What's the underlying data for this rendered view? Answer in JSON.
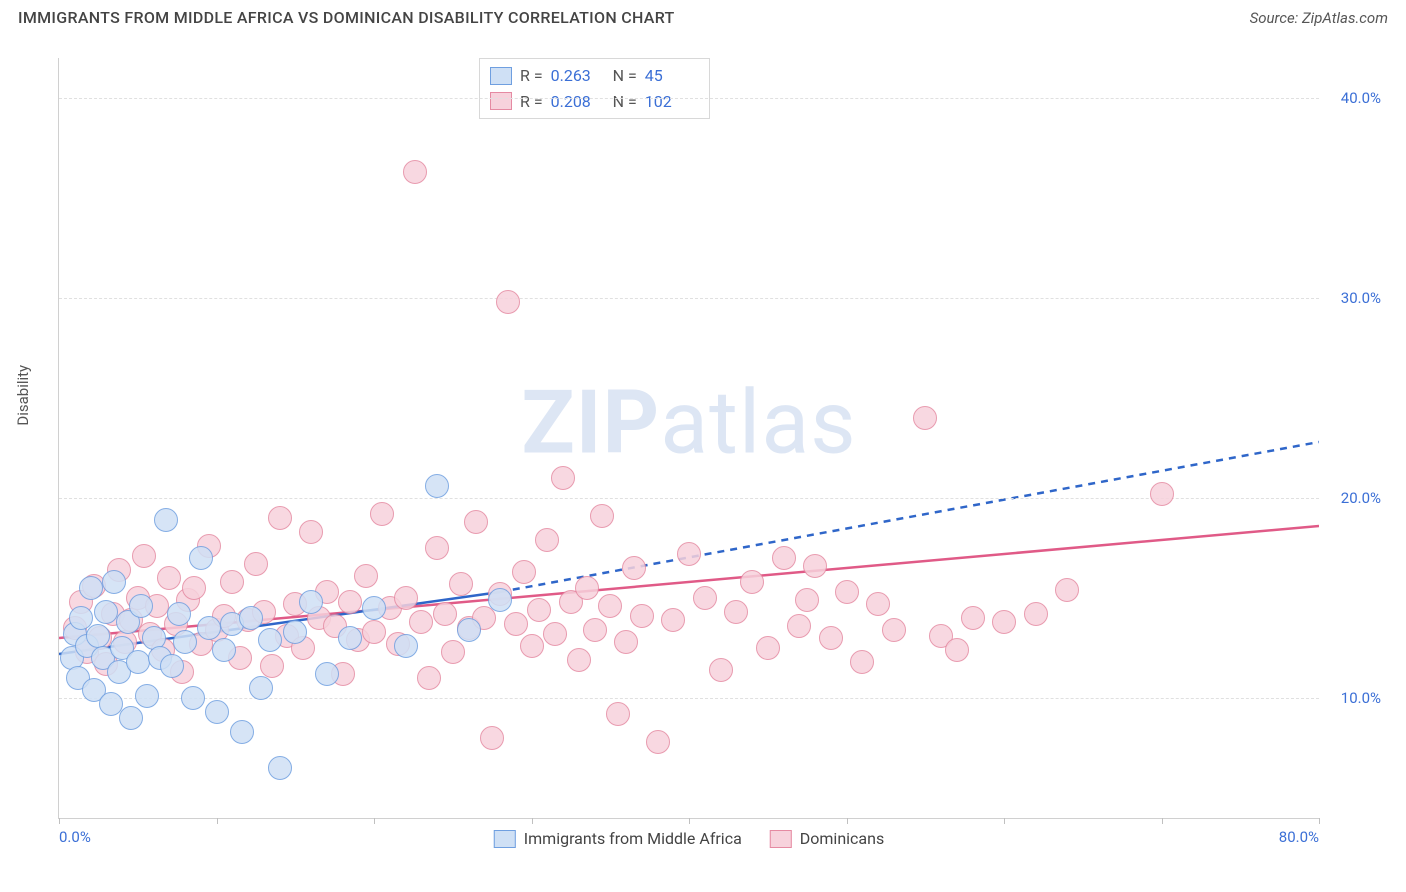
{
  "title": "IMMIGRANTS FROM MIDDLE AFRICA VS DOMINICAN DISABILITY CORRELATION CHART",
  "source": "Source: ZipAtlas.com",
  "ylabel": "Disability",
  "watermark_bold": "ZIP",
  "watermark_rest": "atlas",
  "chart": {
    "type": "scatter",
    "xlim": [
      0,
      80
    ],
    "ylim": [
      4,
      42
    ],
    "xtick_positions": [
      0,
      10,
      20,
      30,
      40,
      50,
      60,
      70,
      80
    ],
    "xtick_labels_shown": {
      "0": "0.0%",
      "80": "80.0%"
    },
    "ytick_positions": [
      10,
      20,
      30,
      40
    ],
    "ytick_labels": [
      "10.0%",
      "20.0%",
      "30.0%",
      "40.0%"
    ],
    "grid_color": "#e0e0e0",
    "axis_label_color": "#3b6fd6",
    "background_color": "#ffffff",
    "marker_radius": 11,
    "series_a": {
      "name": "Immigrants from Middle Africa",
      "fill": "#cfe0f5",
      "stroke": "#6f9fe0",
      "R": "0.263",
      "N": "45",
      "trend": {
        "x1": 0,
        "y1": 12.2,
        "x2_solid": 28,
        "y2_solid": 15.3,
        "x2_dash": 80,
        "y2_dash": 22.8,
        "color": "#2f66c9",
        "width": 2.5
      },
      "points": [
        [
          0.8,
          12.0
        ],
        [
          1.0,
          13.2
        ],
        [
          1.2,
          11.0
        ],
        [
          1.4,
          14.0
        ],
        [
          1.8,
          12.6
        ],
        [
          2.0,
          15.5
        ],
        [
          2.2,
          10.4
        ],
        [
          2.5,
          13.1
        ],
        [
          2.8,
          12.0
        ],
        [
          3.0,
          14.3
        ],
        [
          3.3,
          9.7
        ],
        [
          3.5,
          15.8
        ],
        [
          3.8,
          11.3
        ],
        [
          4.0,
          12.5
        ],
        [
          4.4,
          13.8
        ],
        [
          4.6,
          9.0
        ],
        [
          5.0,
          11.8
        ],
        [
          5.2,
          14.6
        ],
        [
          5.6,
          10.1
        ],
        [
          6.0,
          13.0
        ],
        [
          6.4,
          12.0
        ],
        [
          6.8,
          18.9
        ],
        [
          7.2,
          11.6
        ],
        [
          7.6,
          14.2
        ],
        [
          8.0,
          12.8
        ],
        [
          8.5,
          10.0
        ],
        [
          9.0,
          17.0
        ],
        [
          9.5,
          13.5
        ],
        [
          10.0,
          9.3
        ],
        [
          10.5,
          12.4
        ],
        [
          11.0,
          13.7
        ],
        [
          11.6,
          8.3
        ],
        [
          12.2,
          14.0
        ],
        [
          12.8,
          10.5
        ],
        [
          13.4,
          12.9
        ],
        [
          14.0,
          6.5
        ],
        [
          15.0,
          13.3
        ],
        [
          16.0,
          14.8
        ],
        [
          17.0,
          11.2
        ],
        [
          18.5,
          13.0
        ],
        [
          20.0,
          14.5
        ],
        [
          22.0,
          12.6
        ],
        [
          24.0,
          20.6
        ],
        [
          26.0,
          13.4
        ],
        [
          28.0,
          14.9
        ]
      ]
    },
    "series_b": {
      "name": "Dominicans",
      "fill": "#f7d2dc",
      "stroke": "#e58aa2",
      "R": "0.208",
      "N": "102",
      "trend": {
        "x1": 0,
        "y1": 13.0,
        "x2": 80,
        "y2": 18.6,
        "color": "#e05a87",
        "width": 2.5
      },
      "points": [
        [
          1.0,
          13.5
        ],
        [
          1.4,
          14.8
        ],
        [
          1.8,
          12.3
        ],
        [
          2.2,
          15.6
        ],
        [
          2.6,
          13.0
        ],
        [
          3.0,
          11.7
        ],
        [
          3.4,
          14.2
        ],
        [
          3.8,
          16.4
        ],
        [
          4.2,
          12.8
        ],
        [
          4.6,
          13.9
        ],
        [
          5.0,
          15.0
        ],
        [
          5.4,
          17.1
        ],
        [
          5.8,
          13.2
        ],
        [
          6.2,
          14.6
        ],
        [
          6.6,
          12.4
        ],
        [
          7.0,
          16.0
        ],
        [
          7.4,
          13.7
        ],
        [
          7.8,
          11.3
        ],
        [
          8.2,
          14.9
        ],
        [
          8.6,
          15.5
        ],
        [
          9.0,
          12.7
        ],
        [
          9.5,
          17.6
        ],
        [
          10.0,
          13.4
        ],
        [
          10.5,
          14.1
        ],
        [
          11.0,
          15.8
        ],
        [
          11.5,
          12.0
        ],
        [
          12.0,
          13.9
        ],
        [
          12.5,
          16.7
        ],
        [
          13.0,
          14.3
        ],
        [
          13.5,
          11.6
        ],
        [
          14.0,
          19.0
        ],
        [
          14.5,
          13.1
        ],
        [
          15.0,
          14.7
        ],
        [
          15.5,
          12.5
        ],
        [
          16.0,
          18.3
        ],
        [
          16.5,
          14.0
        ],
        [
          17.0,
          15.3
        ],
        [
          17.5,
          13.6
        ],
        [
          18.0,
          11.2
        ],
        [
          18.5,
          14.8
        ],
        [
          19.0,
          12.9
        ],
        [
          19.5,
          16.1
        ],
        [
          20.0,
          13.3
        ],
        [
          20.5,
          19.2
        ],
        [
          21.0,
          14.5
        ],
        [
          21.5,
          12.7
        ],
        [
          22.0,
          15.0
        ],
        [
          22.6,
          36.3
        ],
        [
          23.0,
          13.8
        ],
        [
          23.5,
          11.0
        ],
        [
          24.0,
          17.5
        ],
        [
          24.5,
          14.2
        ],
        [
          25.0,
          12.3
        ],
        [
          25.5,
          15.7
        ],
        [
          26.0,
          13.5
        ],
        [
          26.5,
          18.8
        ],
        [
          27.0,
          14.0
        ],
        [
          27.5,
          8.0
        ],
        [
          28.0,
          15.2
        ],
        [
          28.5,
          29.8
        ],
        [
          29.0,
          13.7
        ],
        [
          29.5,
          16.3
        ],
        [
          30.0,
          12.6
        ],
        [
          30.5,
          14.4
        ],
        [
          31.0,
          17.9
        ],
        [
          31.5,
          13.2
        ],
        [
          32.0,
          21.0
        ],
        [
          32.5,
          14.8
        ],
        [
          33.0,
          11.9
        ],
        [
          33.5,
          15.5
        ],
        [
          34.0,
          13.4
        ],
        [
          34.5,
          19.1
        ],
        [
          35.0,
          14.6
        ],
        [
          35.5,
          9.2
        ],
        [
          36.0,
          12.8
        ],
        [
          36.5,
          16.5
        ],
        [
          37.0,
          14.1
        ],
        [
          38.0,
          7.8
        ],
        [
          39.0,
          13.9
        ],
        [
          40.0,
          17.2
        ],
        [
          41.0,
          15.0
        ],
        [
          42.0,
          11.4
        ],
        [
          43.0,
          14.3
        ],
        [
          44.0,
          15.8
        ],
        [
          45.0,
          12.5
        ],
        [
          46.0,
          17.0
        ],
        [
          47.0,
          13.6
        ],
        [
          48.0,
          16.6
        ],
        [
          49.0,
          13.0
        ],
        [
          50.0,
          15.3
        ],
        [
          51.0,
          11.8
        ],
        [
          52.0,
          14.7
        ],
        [
          53.0,
          13.4
        ],
        [
          55.0,
          24.0
        ],
        [
          56.0,
          13.1
        ],
        [
          57.0,
          12.4
        ],
        [
          58.0,
          14.0
        ],
        [
          60.0,
          13.8
        ],
        [
          62.0,
          14.2
        ],
        [
          70.0,
          20.2
        ],
        [
          64.0,
          15.4
        ],
        [
          47.5,
          14.9
        ]
      ]
    }
  }
}
